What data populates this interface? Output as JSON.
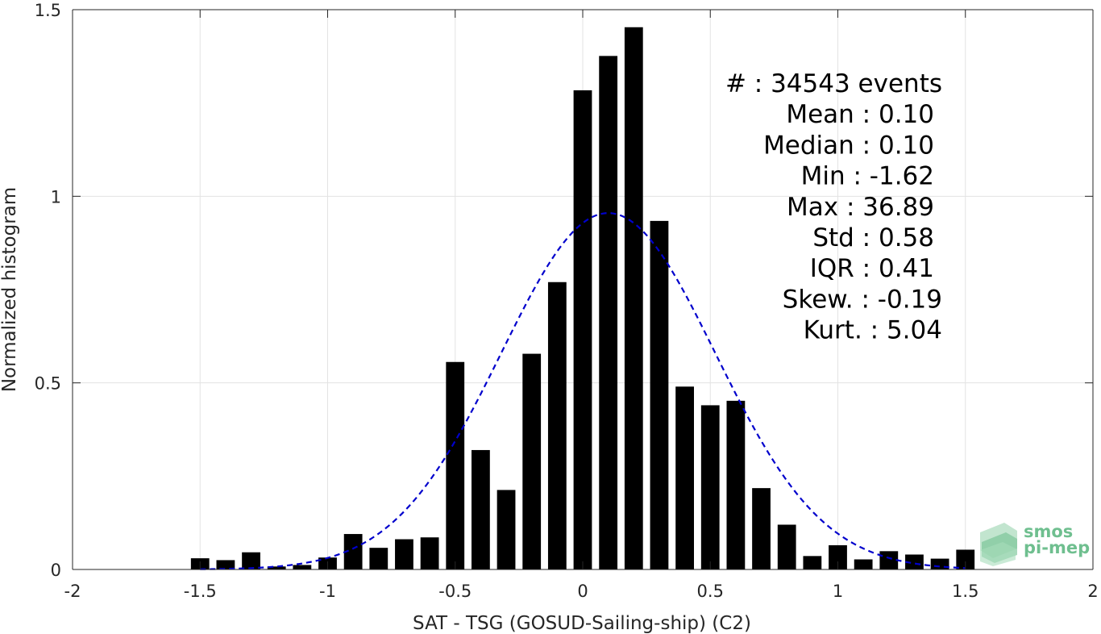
{
  "chart_data": {
    "type": "bar",
    "xlabel": "SAT - TSG (GOSUD-Sailing-ship) (C2)",
    "ylabel": "Normalized histogram",
    "xlim": [
      -2,
      2
    ],
    "ylim": [
      0,
      1.5
    ],
    "x_ticks": [
      -2,
      -1.5,
      -1,
      -0.5,
      0,
      0.5,
      1,
      1.5,
      2
    ],
    "x_tick_labels": [
      "-2",
      "-1.5",
      "-1",
      "-0.5",
      "0",
      "0.5",
      "1",
      "1.5",
      "2"
    ],
    "y_ticks": [
      0,
      0.5,
      1,
      1.5
    ],
    "y_tick_labels": [
      "0",
      "0.5",
      "1",
      "1.5"
    ],
    "grid": true,
    "bar_color": "#000000",
    "bin_width": 0.1,
    "x": [
      -1.5,
      -1.4,
      -1.3,
      -1.2,
      -1.1,
      -1.0,
      -0.9,
      -0.8,
      -0.7,
      -0.6,
      -0.5,
      -0.4,
      -0.3,
      -0.2,
      -0.1,
      0.0,
      0.1,
      0.2,
      0.3,
      0.4,
      0.5,
      0.6,
      0.7,
      0.8,
      0.9,
      1.0,
      1.1,
      1.2,
      1.3,
      1.4,
      1.5
    ],
    "values": [
      0.03,
      0.025,
      0.046,
      0.008,
      0.012,
      0.032,
      0.095,
      0.058,
      0.081,
      0.086,
      0.556,
      0.32,
      0.213,
      0.578,
      0.77,
      1.284,
      1.376,
      1.453,
      0.934,
      0.49,
      0.44,
      0.452,
      0.218,
      0.12,
      0.036,
      0.065,
      0.027,
      0.049,
      0.04,
      0.029,
      0.053
    ],
    "fit_curve": {
      "type": "normal",
      "mean": 0.1,
      "std": 0.42,
      "peak": 0.955,
      "x_range": [
        -1.5,
        1.5
      ],
      "color": "#0000cc",
      "style": "dashed"
    },
    "annotations": [
      "#  : 34543 events",
      "Mean : 0.10",
      "Median : 0.10",
      "Min : -1.62",
      "Max : 36.89",
      "Std : 0.58",
      "IQR : 0.41",
      "Skew. : -0.19",
      "Kurt. : 5.04"
    ]
  },
  "logo": {
    "line1": "smos",
    "line2": "pi-mep",
    "color": "#6fbf8f"
  }
}
